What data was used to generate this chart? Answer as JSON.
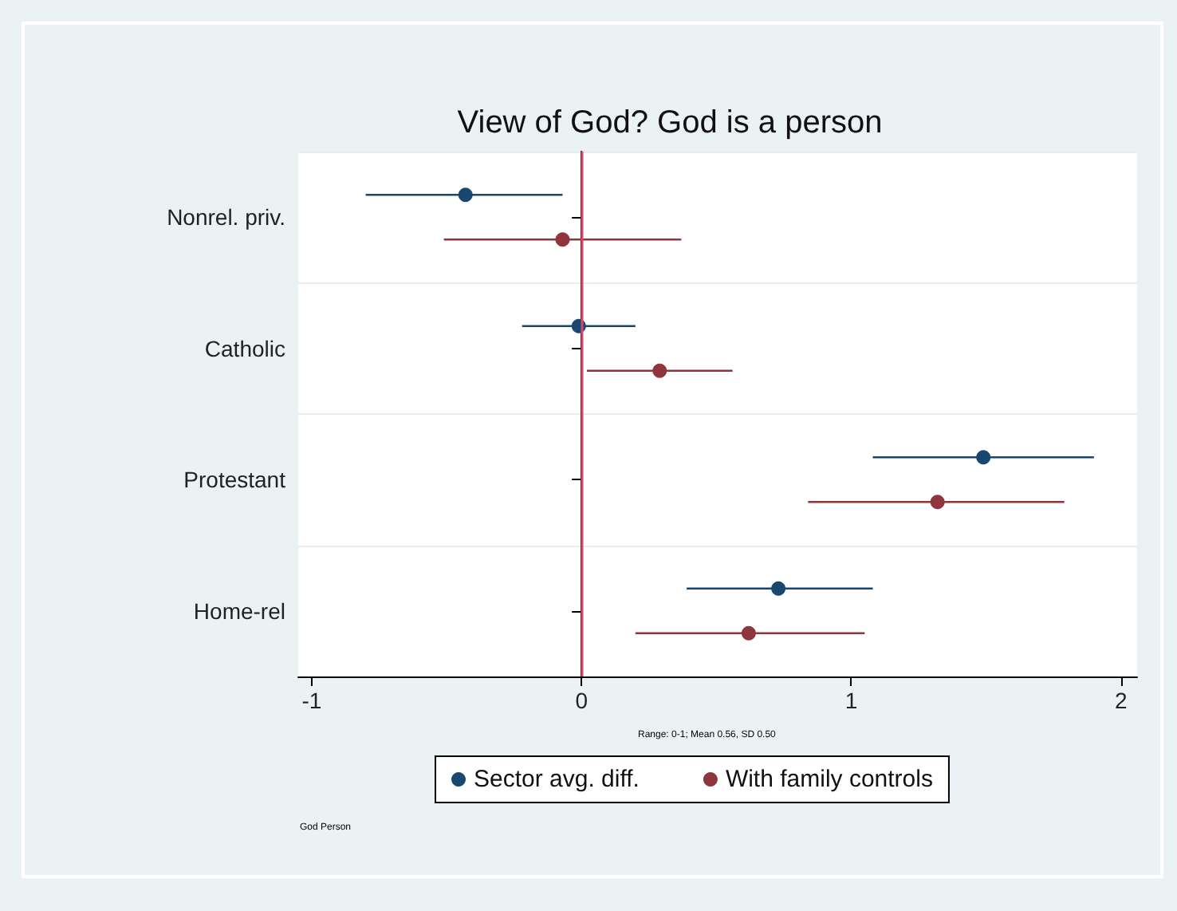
{
  "chart_data": {
    "type": "scatter",
    "orientation": "horizontal",
    "title": "View of God? God is a person",
    "categories": [
      "Nonrel. priv.",
      "Catholic",
      "Protestant",
      "Home-rel"
    ],
    "series": [
      {
        "name": "Sector avg. diff.",
        "color": "#1a476f",
        "values": [
          -0.43,
          -0.01,
          1.49,
          0.73
        ],
        "errors": [
          [
            -0.8,
            -0.07
          ],
          [
            -0.22,
            0.2
          ],
          [
            1.08,
            1.9
          ],
          [
            0.39,
            1.08
          ]
        ]
      },
      {
        "name": "With family controls",
        "color": "#90353b",
        "values": [
          -0.07,
          0.29,
          1.32,
          0.62
        ],
        "errors": [
          [
            -0.51,
            0.37
          ],
          [
            0.02,
            0.56
          ],
          [
            0.84,
            1.79
          ],
          [
            0.2,
            1.05
          ]
        ]
      }
    ],
    "xlim": [
      -1.05,
      2.06
    ],
    "xticks": [
      -1,
      0,
      1,
      2
    ],
    "ref_lines": [
      {
        "axis": "x",
        "value": 0,
        "color": "#d9496b"
      }
    ],
    "annotations": [
      "Range: 0-1; Mean 0.56, SD 0.50",
      "God Person"
    ],
    "grid": "y",
    "legend": "bottom",
    "marker": "circle"
  }
}
